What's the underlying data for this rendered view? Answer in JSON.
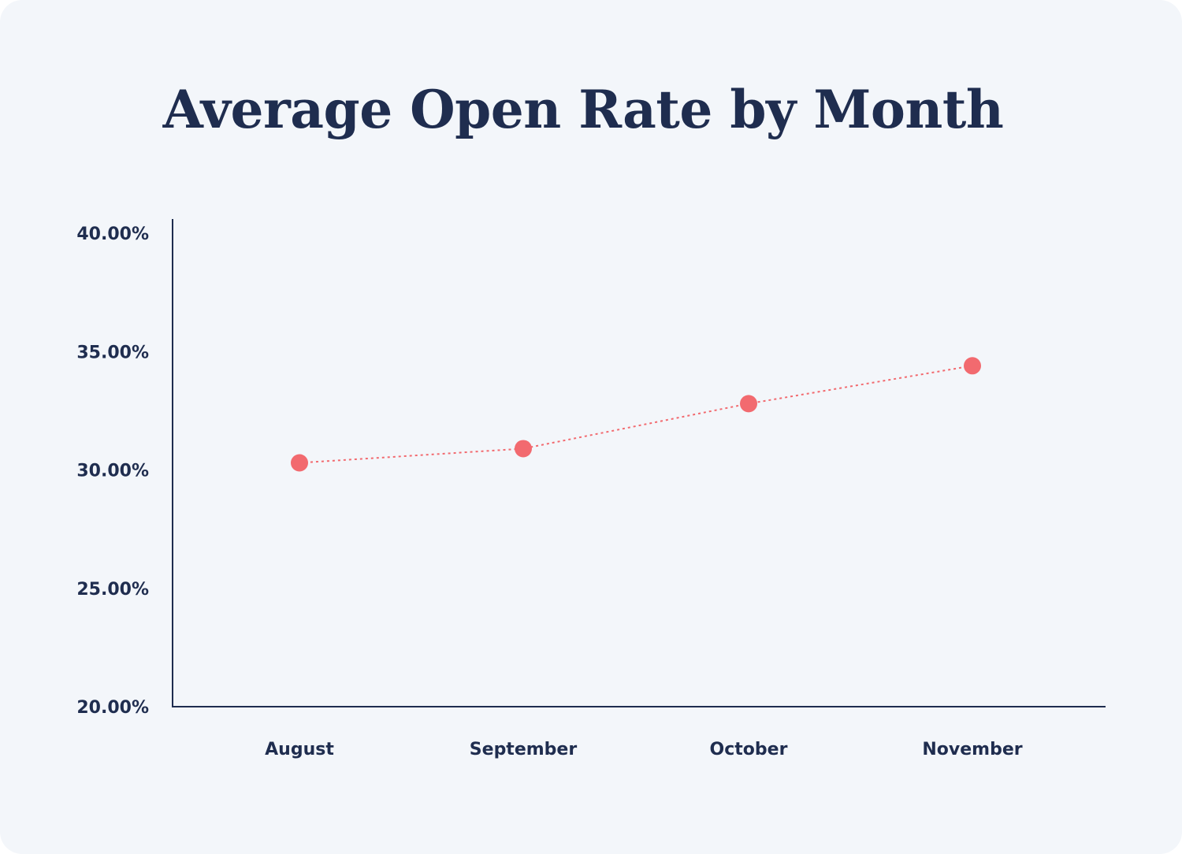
{
  "chart_data": {
    "type": "line",
    "title": "Average Open Rate by Month",
    "xlabel": "",
    "ylabel": "",
    "categories": [
      "August",
      "September",
      "October",
      "November"
    ],
    "series": [
      {
        "values": [
          30.3,
          30.9,
          32.8,
          34.4
        ]
      }
    ],
    "ylim": [
      20,
      40
    ],
    "yticks": [
      20,
      25,
      30,
      35,
      40
    ],
    "ytick_labels": [
      "20.00%",
      "25.00%",
      "30.00%",
      "35.00%",
      "40.00%"
    ],
    "grid": false,
    "line_style": "dotted",
    "colors": {
      "series": "#f26a6f",
      "axis": "#1f2d4f",
      "text": "#1f2d4f",
      "background": "#f3f6fa"
    }
  }
}
